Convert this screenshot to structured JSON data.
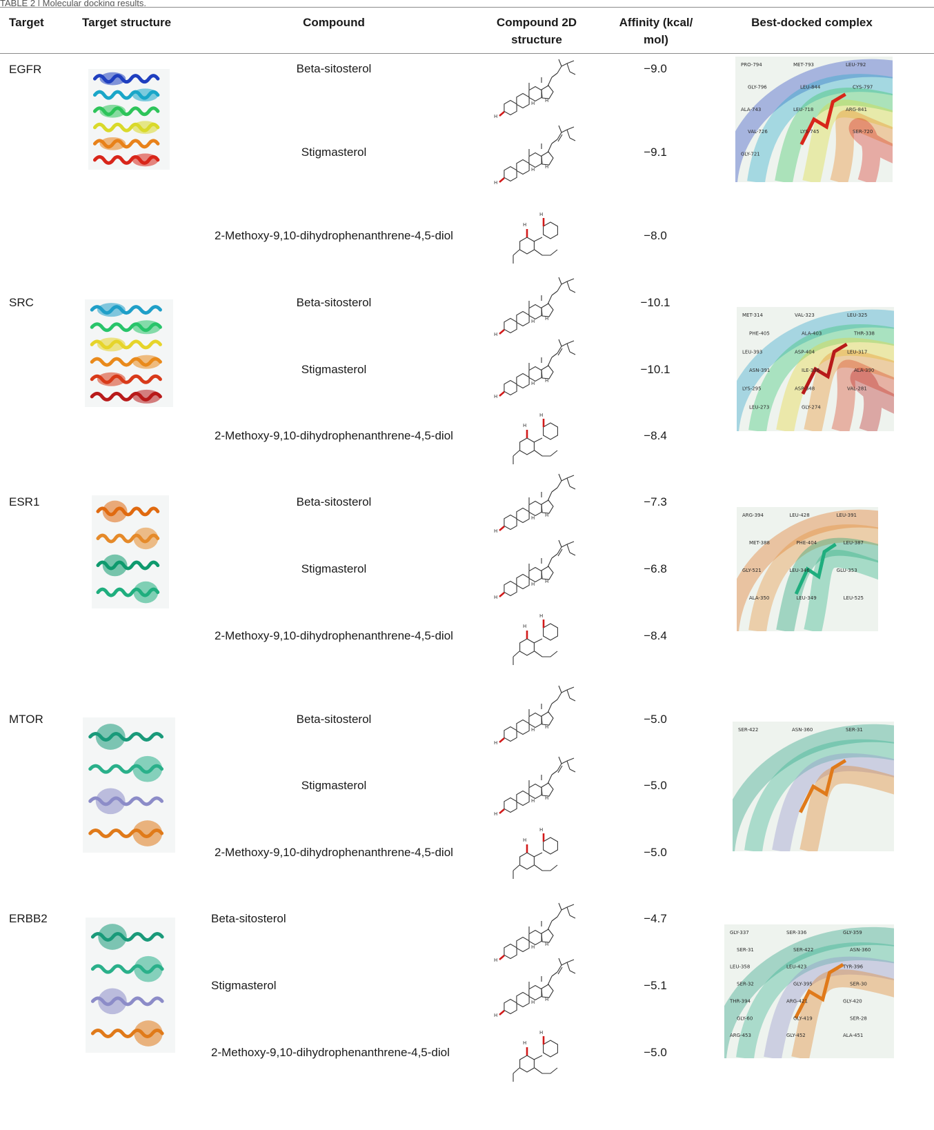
{
  "caption": "TABLE 2 | Molecular docking results.",
  "columns": {
    "target": "Target",
    "target_structure": "Target structure",
    "compound": "Compound",
    "structure_2d_l1": "Compound 2D",
    "structure_2d_l2": "structure",
    "affinity_l1": "Affinity (kcal/",
    "affinity_l2": "mol)",
    "complex": "Best-docked complex"
  },
  "rows": [
    {
      "target": "EGFR",
      "colors": [
        "#1f3fbf",
        "#1aa6c8",
        "#2ec45a",
        "#d9d92a",
        "#e8821a",
        "#d8261a"
      ],
      "compounds": [
        {
          "name": "Beta-sitosterol",
          "affinity": "−9.0"
        },
        {
          "name": "Stigmasterol",
          "affinity": "−9.1"
        },
        {
          "name": "2-Methoxy-9,10-dihydrophenanthrene-4,5-diol",
          "affinity": "−8.0"
        }
      ],
      "residues": [
        "PRO-794",
        "MET-793",
        "LEU-792",
        "GLY-796",
        "LEU-844",
        "CYS-797",
        "ALA-743",
        "LEU-718",
        "ARG-841",
        "VAL-726",
        "LYS-745",
        "SER-720",
        "GLY-721"
      ]
    },
    {
      "target": "SRC",
      "colors": [
        "#1f9fc8",
        "#28c46a",
        "#e6d42a",
        "#e98a1c",
        "#d83a1a",
        "#b81a1a"
      ],
      "compounds": [
        {
          "name": "Beta-sitosterol",
          "affinity": "−10.1"
        },
        {
          "name": "Stigmasterol",
          "affinity": "−10.1"
        },
        {
          "name": "2-Methoxy-9,10-dihydrophenanthrene-4,5-diol",
          "affinity": "−8.4"
        }
      ],
      "residues": [
        "MET-314",
        "VAL-323",
        "LEU-325",
        "PHE-405",
        "ALA-403",
        "THR-338",
        "LEU-393",
        "ASP-404",
        "LEU-317",
        "ASN-391",
        "ILE-336",
        "ALA-390",
        "LYS-295",
        "ASP-348",
        "VAL-281",
        "LEU-273",
        "GLY-274"
      ]
    },
    {
      "target": "ESR1",
      "colors": [
        "#e06a10",
        "#e58a2a",
        "#0f9a6e",
        "#1fae7e"
      ],
      "compounds": [
        {
          "name": "Beta-sitosterol",
          "affinity": "−7.3"
        },
        {
          "name": "Stigmasterol",
          "affinity": "−6.8"
        },
        {
          "name": "2-Methoxy-9,10-dihydrophenanthrene-4,5-diol",
          "affinity": "−8.4"
        }
      ],
      "residues": [
        "ARG-394",
        "LEU-428",
        "LEU-391",
        "MET-388",
        "PHE-404",
        "LEU-387",
        "GLY-521",
        "LEU-346",
        "GLU-353",
        "ALA-350",
        "LEU-349",
        "LEU-525"
      ]
    },
    {
      "target": "MTOR",
      "colors": [
        "#1a9a7a",
        "#2ab08a",
        "#8c8cc8",
        "#e07a1a"
      ],
      "compounds": [
        {
          "name": "Beta-sitosterol",
          "affinity": "−5.0"
        },
        {
          "name": "Stigmasterol",
          "affinity": "−5.0"
        },
        {
          "name": "2-Methoxy-9,10-dihydrophenanthrene-4,5-diol",
          "affinity": "−5.0"
        }
      ],
      "residues": [
        "SER-422",
        "ASN-360",
        "SER-31"
      ]
    },
    {
      "target": "ERBB2",
      "colors": [
        "#1a9a7a",
        "#2ab08a",
        "#8c8cc8",
        "#e07a1a"
      ],
      "compounds": [
        {
          "name": "Beta-sitosterol",
          "affinity": "−4.7"
        },
        {
          "name": "Stigmasterol",
          "affinity": "−5.1"
        },
        {
          "name": "2-Methoxy-9,10-dihydrophenanthrene-4,5-diol",
          "affinity": "−5.0"
        }
      ],
      "residues": [
        "GLY-337",
        "SER-336",
        "GLY-359",
        "SER-31",
        "SER-422",
        "ASN-360",
        "LEU-358",
        "LEU-423",
        "TYR-396",
        "SER-32",
        "GLY-395",
        "SER-30",
        "THR-394",
        "ARG-421",
        "GLY-420",
        "GLY-60",
        "GLY-419",
        "SER-28",
        "ARG-453",
        "GLY-452",
        "ALA-451"
      ]
    }
  ]
}
